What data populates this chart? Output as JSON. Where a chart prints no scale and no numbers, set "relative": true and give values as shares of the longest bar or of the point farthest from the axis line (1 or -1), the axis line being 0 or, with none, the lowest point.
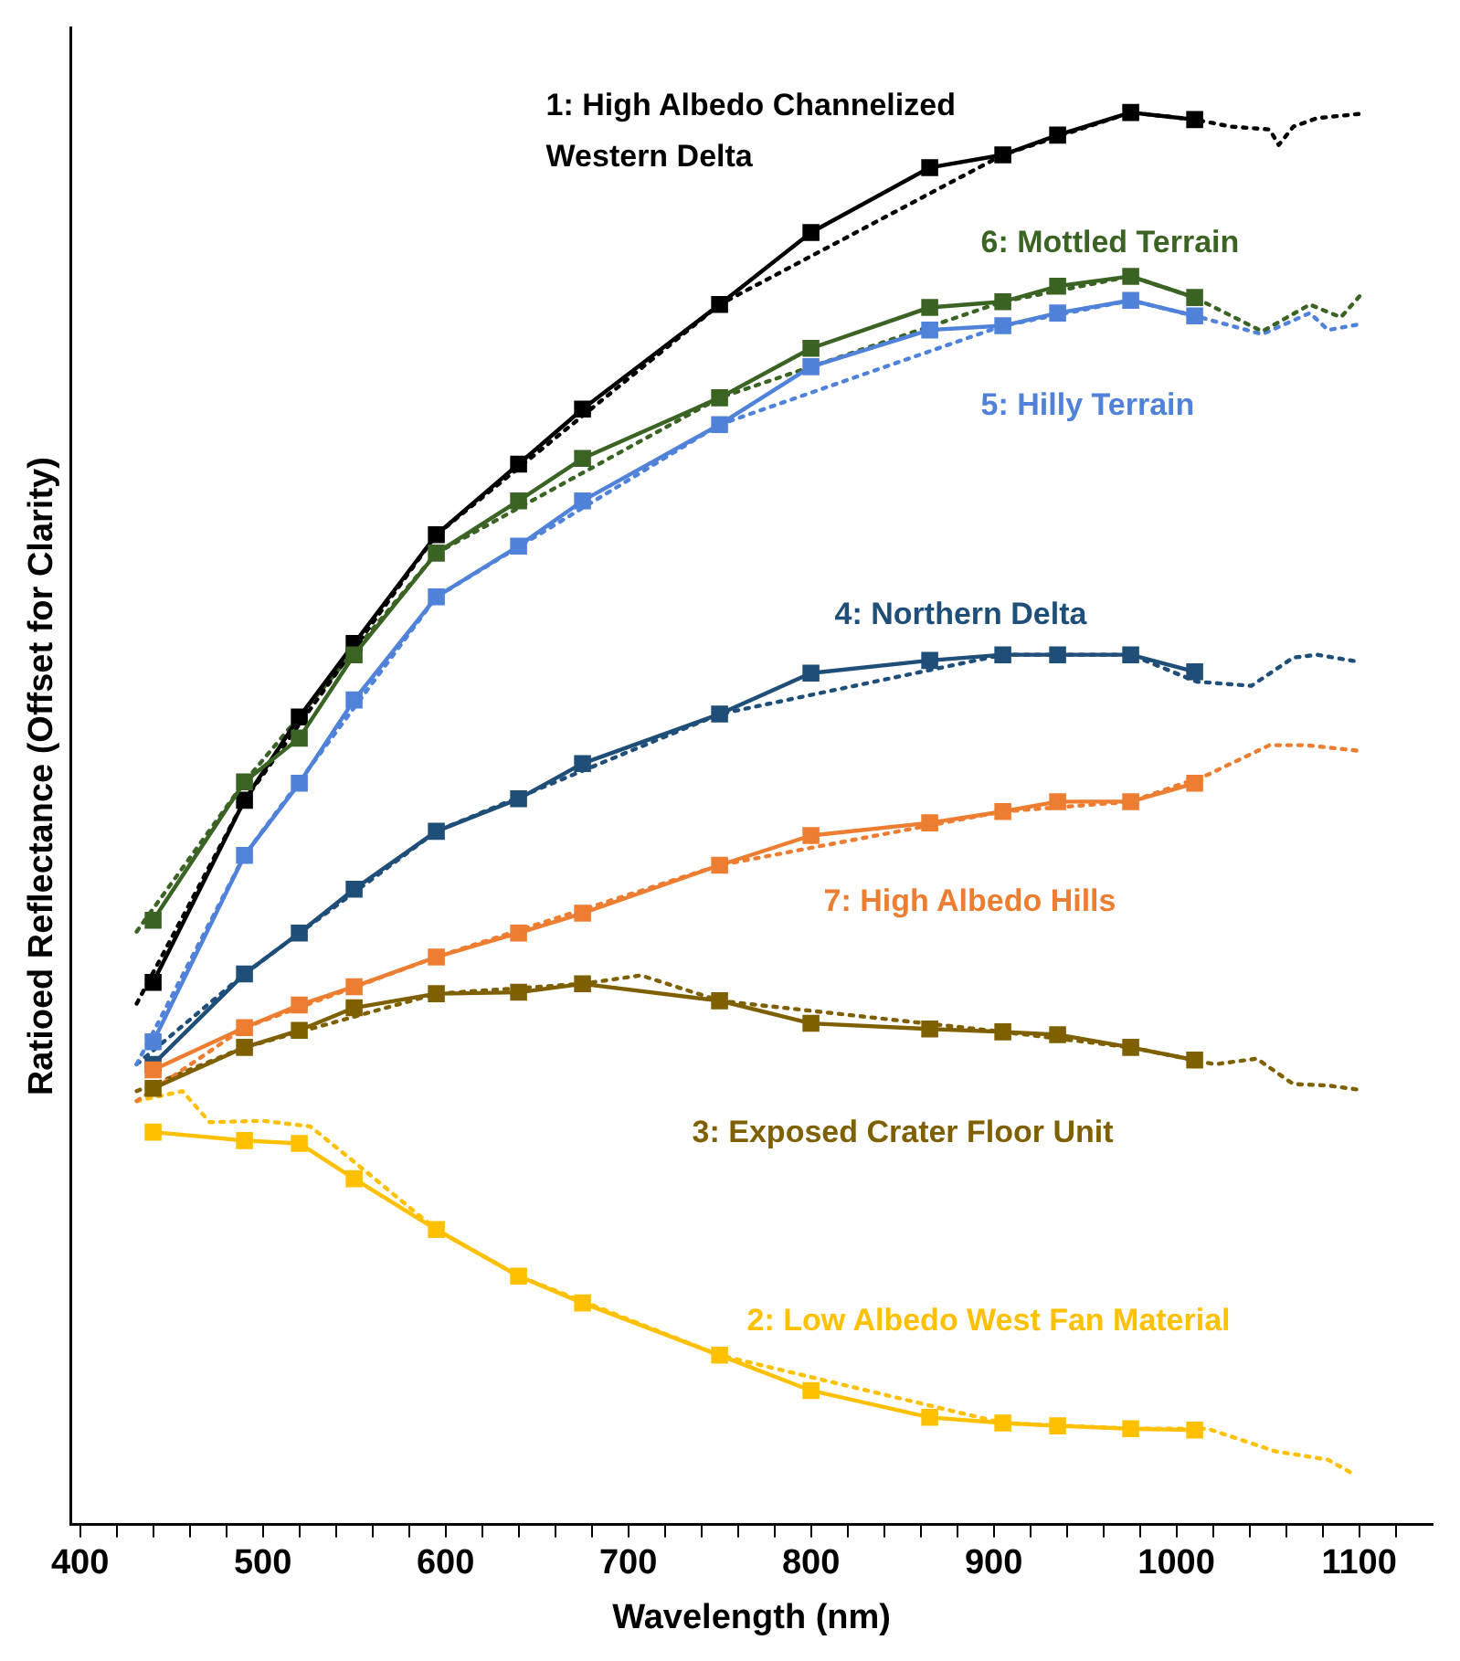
{
  "chart_data": {
    "type": "line",
    "xlabel": "Wavelength (nm)",
    "ylabel": "Ratioed Reflectance (Offset for Clarity)",
    "relative": true,
    "xlim": [
      395,
      1140
    ],
    "xticks": [
      400,
      {
        "value": 420,
        "label": null
      },
      {
        "value": 440,
        "label": null
      },
      {
        "value": 460,
        "label": null
      },
      {
        "value": 480,
        "label": null
      },
      500,
      {
        "value": 520,
        "label": null
      },
      {
        "value": 540,
        "label": null
      },
      {
        "value": 560,
        "label": null
      },
      {
        "value": 580,
        "label": null
      },
      600,
      {
        "value": 620,
        "label": null
      },
      {
        "value": 640,
        "label": null
      },
      {
        "value": 660,
        "label": null
      },
      {
        "value": 680,
        "label": null
      },
      700,
      {
        "value": 720,
        "label": null
      },
      {
        "value": 740,
        "label": null
      },
      {
        "value": 760,
        "label": null
      },
      {
        "value": 780,
        "label": null
      },
      800,
      {
        "value": 820,
        "label": null
      },
      {
        "value": 840,
        "label": null
      },
      {
        "value": 860,
        "label": null
      },
      {
        "value": 880,
        "label": null
      },
      900,
      {
        "value": 920,
        "label": null
      },
      {
        "value": 940,
        "label": null
      },
      {
        "value": 960,
        "label": null
      },
      {
        "value": 980,
        "label": null
      },
      1000,
      {
        "value": 1020,
        "label": null
      },
      {
        "value": 1040,
        "label": null
      },
      {
        "value": 1060,
        "label": null
      },
      {
        "value": 1080,
        "label": null
      },
      1100,
      {
        "value": 1120,
        "label": null
      }
    ],
    "tick_labels": "x",
    "grid": false,
    "legend": false,
    "marker": "square",
    "line_style": "solid",
    "x": [
      440,
      490,
      520,
      550,
      595,
      640,
      675,
      750,
      800,
      865,
      905,
      935,
      975,
      1010
    ],
    "series": [
      {
        "name": "1: High Albedo Channelized Western Delta",
        "color": "#000000",
        "values": [
          0.384,
          0.513,
          0.572,
          0.624,
          0.701,
          0.751,
          0.79,
          0.864,
          0.915,
          0.961,
          0.97,
          0.984,
          1.0,
          0.995
        ]
      },
      {
        "name": "6: Mottled Terrain",
        "color": "#3b6324",
        "values": [
          0.428,
          0.526,
          0.557,
          0.616,
          0.688,
          0.725,
          0.755,
          0.798,
          0.833,
          0.862,
          0.866,
          0.877,
          0.884,
          0.869
        ]
      },
      {
        "name": "5: Hilly Terrain",
        "color": "#4f82d8",
        "values": [
          0.342,
          0.474,
          0.525,
          0.584,
          0.657,
          0.693,
          0.725,
          0.779,
          0.82,
          0.846,
          0.849,
          0.858,
          0.867,
          0.856
        ]
      },
      {
        "name": "4: Northern Delta",
        "color": "#1f4e79",
        "values": [
          0.326,
          0.39,
          0.419,
          0.45,
          0.491,
          0.514,
          0.539,
          0.574,
          0.603,
          0.612,
          0.616,
          0.616,
          0.616,
          0.604
        ]
      },
      {
        "name": "7: High Albedo Hills",
        "color": "#ed7d31",
        "values": [
          0.322,
          0.352,
          0.368,
          0.381,
          0.402,
          0.419,
          0.433,
          0.467,
          0.488,
          0.497,
          0.505,
          0.512,
          0.512,
          0.525
        ]
      },
      {
        "name": "3: Exposed Crater Floor Unit",
        "color": "#7f6000",
        "values": [
          0.309,
          0.338,
          0.35,
          0.366,
          0.376,
          0.377,
          0.383,
          0.371,
          0.355,
          0.351,
          0.349,
          0.347,
          0.338,
          0.329
        ]
      },
      {
        "name": "2: Low Albedo West Fan Material",
        "color": "#ffc000",
        "values": [
          0.278,
          0.272,
          0.27,
          0.245,
          0.209,
          0.176,
          0.157,
          0.12,
          0.095,
          0.076,
          0.072,
          0.07,
          0.068,
          0.067
        ]
      },
      {
        "color": "#000000",
        "marker": "none",
        "line_style": "dotted",
        "x": [
          431,
          490,
          595,
          750,
          905,
          975,
          1010,
          1030,
          1051,
          1056,
          1064,
          1077,
          1100
        ],
        "values": [
          0.369,
          0.513,
          0.701,
          0.864,
          0.97,
          1.0,
          0.995,
          0.99,
          0.988,
          0.977,
          0.99,
          0.996,
          0.999
        ]
      },
      {
        "color": "#3b6324",
        "marker": "none",
        "line_style": "dotted",
        "x": [
          431,
          490,
          595,
          750,
          905,
          975,
          1010,
          1047,
          1073,
          1090,
          1101
        ],
        "values": [
          0.42,
          0.526,
          0.688,
          0.798,
          0.866,
          0.884,
          0.869,
          0.845,
          0.864,
          0.855,
          0.871
        ]
      },
      {
        "color": "#4f82d8",
        "marker": "none",
        "line_style": "dotted",
        "x": [
          431,
          490,
          595,
          750,
          905,
          975,
          1010,
          1047,
          1073,
          1083,
          1100
        ],
        "values": [
          0.326,
          0.474,
          0.657,
          0.779,
          0.849,
          0.867,
          0.856,
          0.843,
          0.858,
          0.846,
          0.85
        ]
      },
      {
        "color": "#1f4e79",
        "marker": "none",
        "line_style": "dotted",
        "x": [
          431,
          490,
          595,
          750,
          905,
          975,
          1011,
          1041,
          1064,
          1077,
          1100
        ],
        "values": [
          0.326,
          0.39,
          0.491,
          0.574,
          0.616,
          0.616,
          0.597,
          0.594,
          0.614,
          0.616,
          0.611
        ]
      },
      {
        "color": "#ed7d31",
        "marker": "none",
        "line_style": "dotted",
        "x": [
          431,
          490,
          595,
          750,
          905,
          975,
          1017,
          1051,
          1071,
          1100
        ],
        "values": [
          0.3,
          0.352,
          0.402,
          0.467,
          0.505,
          0.512,
          0.531,
          0.552,
          0.552,
          0.548
        ]
      },
      {
        "color": "#7f6000",
        "marker": "none",
        "line_style": "dotted",
        "x": [
          431,
          490,
          595,
          675,
          707,
          750,
          905,
          975,
          1021,
          1044,
          1064,
          1083,
          1100
        ],
        "values": [
          0.307,
          0.338,
          0.376,
          0.383,
          0.389,
          0.371,
          0.349,
          0.338,
          0.326,
          0.33,
          0.312,
          0.311,
          0.308
        ]
      },
      {
        "color": "#ffc000",
        "marker": "none",
        "line_style": "dotted",
        "x": [
          431,
          456,
          471,
          500,
          526,
          549,
          595,
          640,
          750,
          905,
          975,
          1017,
          1054,
          1083,
          1098
        ],
        "values": [
          0.3,
          0.307,
          0.285,
          0.286,
          0.282,
          0.258,
          0.209,
          0.176,
          0.12,
          0.072,
          0.068,
          0.068,
          0.052,
          0.046,
          0.035
        ]
      }
    ]
  }
}
